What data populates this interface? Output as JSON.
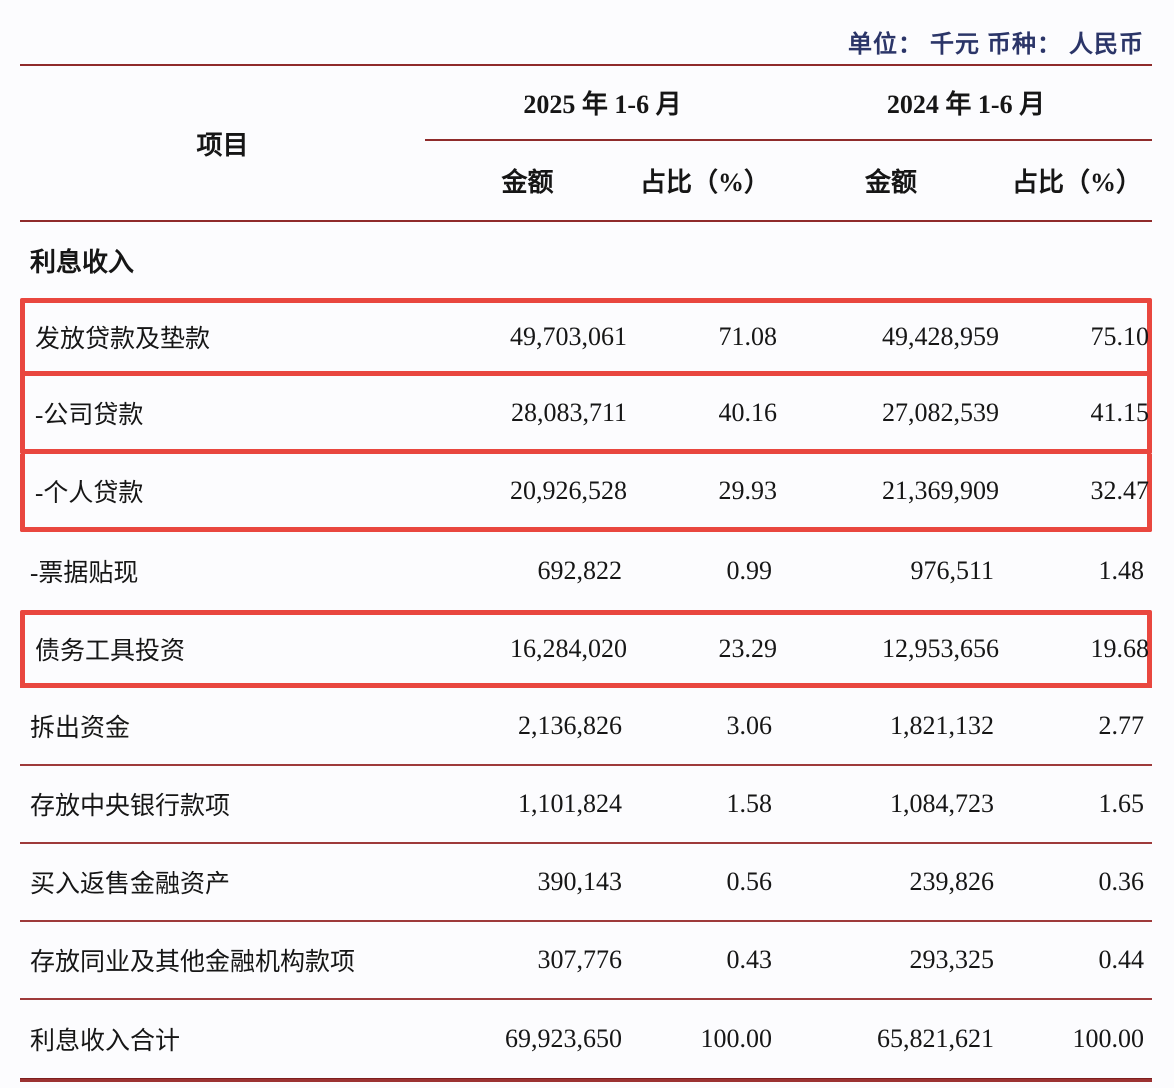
{
  "meta": {
    "unit_line": "单位： 千元    币种： 人民币"
  },
  "colors": {
    "table_rule": "#8f2b2b",
    "row_rule": "#9e3a3a",
    "highlight_box": "#e9473f",
    "unit_text": "#2b3568",
    "body_text": "#161616"
  },
  "table": {
    "col_headers": {
      "item": "项目",
      "period_2025": "2025 年 1-6 月",
      "period_2024": "2024 年 1-6 月",
      "amount": "金额",
      "share": "占比（%）"
    },
    "section_header": "利息收入",
    "rows": [
      {
        "item": "发放贷款及垫款",
        "amount_2025": "49,703,061",
        "share_2025": "71.08",
        "amount_2024": "49,428,959",
        "share_2024": "75.10",
        "highlighted": true
      },
      {
        "item": "-公司贷款",
        "amount_2025": "28,083,711",
        "share_2025": "40.16",
        "amount_2024": "27,082,539",
        "share_2024": "41.15",
        "highlighted": true
      },
      {
        "item": "-个人贷款",
        "amount_2025": "20,926,528",
        "share_2025": "29.93",
        "amount_2024": "21,369,909",
        "share_2024": "32.47",
        "highlighted": true
      },
      {
        "item": "-票据贴现",
        "amount_2025": "692,822",
        "share_2025": "0.99",
        "amount_2024": "976,511",
        "share_2024": "1.48",
        "highlighted": false
      },
      {
        "item": "债务工具投资",
        "amount_2025": "16,284,020",
        "share_2025": "23.29",
        "amount_2024": "12,953,656",
        "share_2024": "19.68",
        "highlighted": true
      },
      {
        "item": "拆出资金",
        "amount_2025": "2,136,826",
        "share_2025": "3.06",
        "amount_2024": "1,821,132",
        "share_2024": "2.77",
        "highlighted": false
      },
      {
        "item": "存放中央银行款项",
        "amount_2025": "1,101,824",
        "share_2025": "1.58",
        "amount_2024": "1,084,723",
        "share_2024": "1.65",
        "highlighted": false
      },
      {
        "item": "买入返售金融资产",
        "amount_2025": "390,143",
        "share_2025": "0.56",
        "amount_2024": "239,826",
        "share_2024": "0.36",
        "highlighted": false
      },
      {
        "item": "存放同业及其他金融机构款项",
        "amount_2025": "307,776",
        "share_2025": "0.43",
        "amount_2024": "293,325",
        "share_2024": "0.44",
        "highlighted": false
      },
      {
        "item": "利息收入合计",
        "amount_2025": "69,923,650",
        "share_2025": "100.00",
        "amount_2024": "65,821,621",
        "share_2024": "100.00",
        "highlighted": false
      }
    ]
  }
}
